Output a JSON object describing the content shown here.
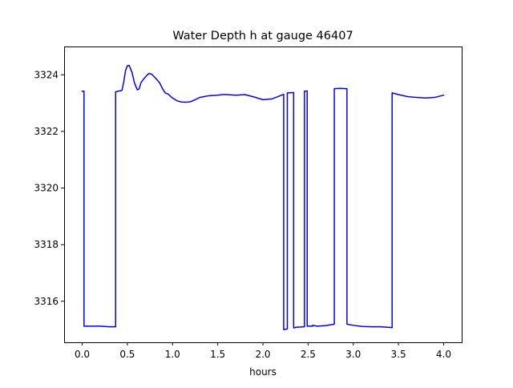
{
  "chart_data": {
    "type": "line",
    "title": "Water Depth h at gauge 46407",
    "xlabel": "hours",
    "ylabel": "",
    "xlim": [
      -0.2,
      4.2
    ],
    "ylim": [
      3314.55,
      3325.0
    ],
    "xticks": [
      0.0,
      0.5,
      1.0,
      1.5,
      2.0,
      2.5,
      3.0,
      3.5,
      4.0
    ],
    "xtick_labels": [
      "0.0",
      "0.5",
      "1.0",
      "1.5",
      "2.0",
      "2.5",
      "3.0",
      "3.5",
      "4.0"
    ],
    "yticks": [
      3316,
      3318,
      3320,
      3322,
      3324
    ],
    "ytick_labels": [
      "3316",
      "3318",
      "3320",
      "3322",
      "3324"
    ],
    "grid": false,
    "series": [
      {
        "color": "#0000ff",
        "x": [
          0.0,
          0.02,
          0.02,
          0.1,
          0.2,
          0.3,
          0.37,
          0.37,
          0.44,
          0.46,
          0.48,
          0.5,
          0.52,
          0.55,
          0.58,
          0.61,
          0.63,
          0.65,
          0.68,
          0.71,
          0.74,
          0.77,
          0.8,
          0.83,
          0.86,
          0.89,
          0.92,
          0.95,
          1.0,
          1.05,
          1.1,
          1.15,
          1.2,
          1.25,
          1.3,
          1.4,
          1.5,
          1.55,
          1.6,
          1.7,
          1.8,
          1.9,
          2.0,
          2.1,
          2.16,
          2.22,
          2.23,
          2.23,
          2.27,
          2.27,
          2.34,
          2.34,
          2.36,
          2.36,
          2.46,
          2.46,
          2.49,
          2.49,
          2.55,
          2.55,
          2.6,
          2.7,
          2.79,
          2.79,
          2.85,
          2.93,
          2.93,
          3.0,
          3.1,
          3.2,
          3.3,
          3.43,
          3.43,
          3.5,
          3.6,
          3.7,
          3.8,
          3.9,
          4.0
        ],
        "y": [
          3323.42,
          3323.42,
          3315.12,
          3315.12,
          3315.12,
          3315.1,
          3315.1,
          3323.4,
          3323.45,
          3323.75,
          3324.15,
          3324.32,
          3324.33,
          3324.1,
          3323.7,
          3323.47,
          3323.5,
          3323.72,
          3323.85,
          3323.96,
          3324.05,
          3324.02,
          3323.92,
          3323.82,
          3323.7,
          3323.5,
          3323.36,
          3323.32,
          3323.18,
          3323.08,
          3323.04,
          3323.03,
          3323.05,
          3323.12,
          3323.2,
          3323.26,
          3323.28,
          3323.3,
          3323.3,
          3323.28,
          3323.3,
          3323.22,
          3323.12,
          3323.15,
          3323.22,
          3323.3,
          3323.31,
          3315.0,
          3315.02,
          3323.36,
          3323.37,
          3315.06,
          3315.07,
          3315.08,
          3315.1,
          3323.42,
          3323.43,
          3315.12,
          3315.12,
          3315.15,
          3315.12,
          3315.14,
          3315.19,
          3323.51,
          3323.52,
          3323.51,
          3315.19,
          3315.15,
          3315.11,
          3315.1,
          3315.1,
          3315.07,
          3323.36,
          3323.3,
          3323.23,
          3323.2,
          3323.18,
          3323.2,
          3323.28
        ]
      }
    ]
  }
}
